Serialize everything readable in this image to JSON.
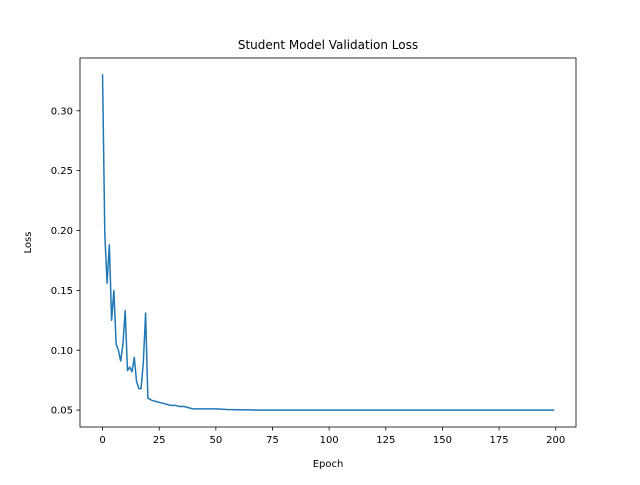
{
  "chart_data": {
    "type": "line",
    "title": "Student Model Validation Loss",
    "xlabel": "Epoch",
    "ylabel": "Loss",
    "xlim": [
      -9.95,
      208.95
    ],
    "ylim": [
      0.0359,
      0.3441
    ],
    "xticks": [
      0,
      25,
      50,
      75,
      100,
      125,
      150,
      175,
      200
    ],
    "yticks": [
      0.05,
      0.1,
      0.15,
      0.2,
      0.25,
      0.3
    ],
    "xtick_labels": [
      "0",
      "25",
      "50",
      "75",
      "100",
      "125",
      "150",
      "175",
      "200"
    ],
    "ytick_labels": [
      "0.05",
      "0.10",
      "0.15",
      "0.20",
      "0.25",
      "0.30"
    ],
    "grid": false,
    "legend": null,
    "series": [
      {
        "color": "#1f77b4",
        "x": [
          0,
          1,
          2,
          3,
          4,
          5,
          6,
          7,
          8,
          9,
          10,
          11,
          12,
          13,
          14,
          15,
          16,
          17,
          18,
          19,
          20,
          22,
          24,
          26,
          28,
          30,
          32,
          34,
          36,
          38,
          40,
          45,
          50,
          55,
          60,
          70,
          80,
          100,
          120,
          140,
          160,
          180,
          199
        ],
        "y": [
          0.33,
          0.197,
          0.156,
          0.188,
          0.125,
          0.15,
          0.105,
          0.1,
          0.091,
          0.105,
          0.133,
          0.083,
          0.086,
          0.082,
          0.094,
          0.074,
          0.068,
          0.068,
          0.09,
          0.131,
          0.06,
          0.058,
          0.057,
          0.056,
          0.055,
          0.054,
          0.054,
          0.053,
          0.053,
          0.052,
          0.051,
          0.051,
          0.051,
          0.0505,
          0.0503,
          0.05,
          0.05,
          0.05,
          0.05,
          0.05,
          0.05,
          0.05,
          0.05
        ]
      }
    ]
  }
}
